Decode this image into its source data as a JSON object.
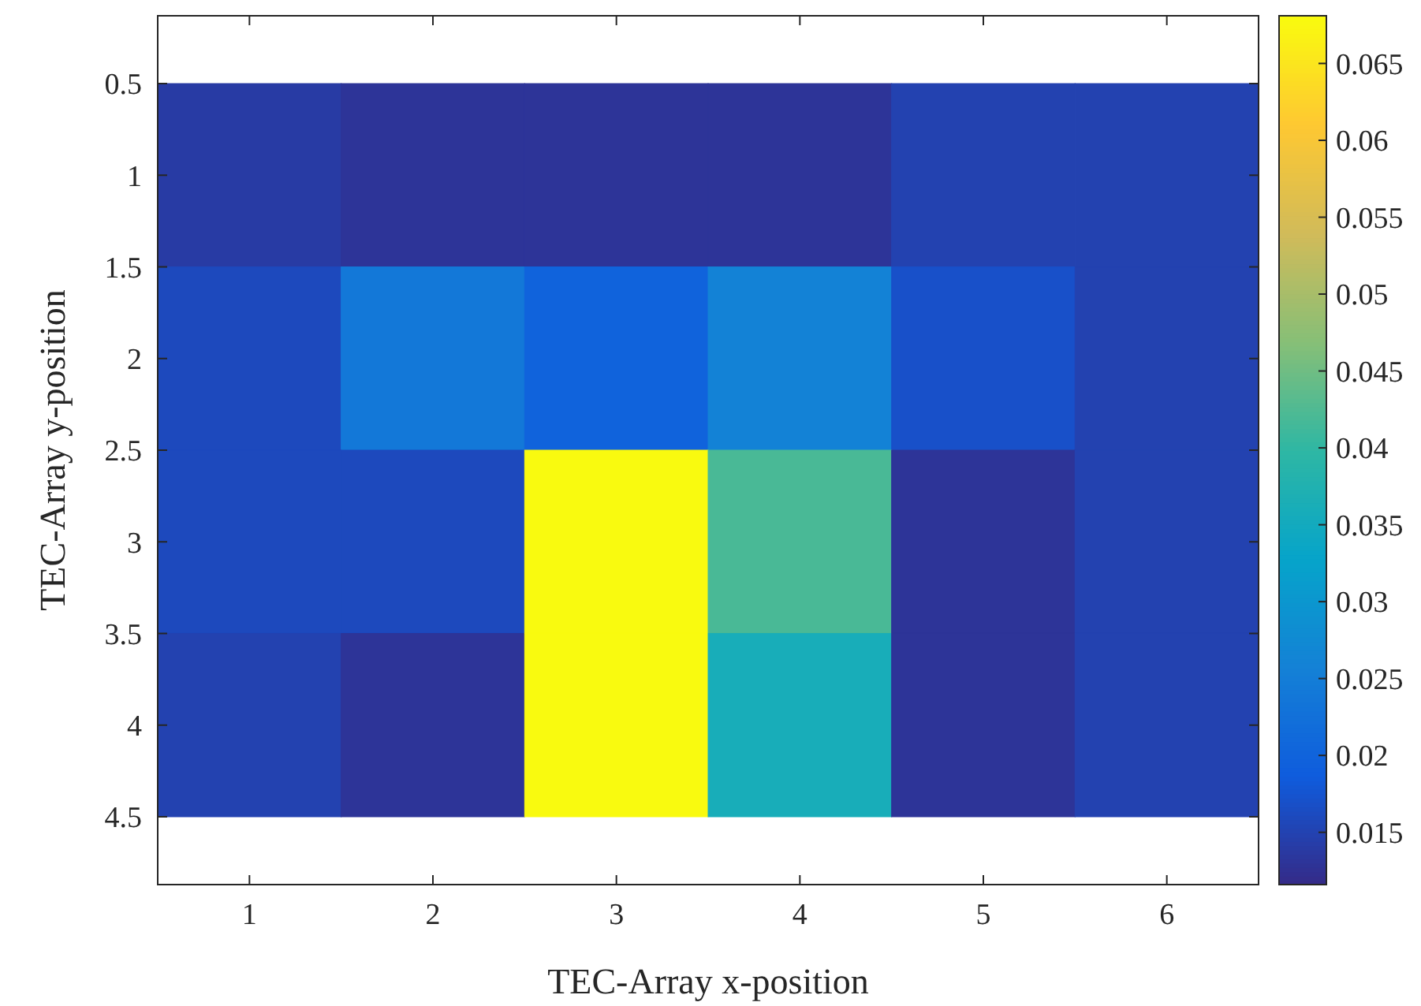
{
  "chart_data": {
    "type": "heatmap",
    "xlabel": "TEC-Array x-position",
    "ylabel": "TEC-Array y-position",
    "categories": [
      "1",
      "2",
      "3",
      "4",
      "5",
      "6"
    ],
    "cells": [
      [
        0.014,
        0.013,
        0.013,
        0.013,
        0.015,
        0.015
      ],
      [
        0.016,
        0.024,
        0.02,
        0.026,
        0.017,
        0.015
      ],
      [
        0.016,
        0.016,
        0.068,
        0.042,
        0.013,
        0.015
      ],
      [
        0.015,
        0.013,
        0.068,
        0.036,
        0.013,
        0.015
      ]
    ],
    "ylim": [
      4.87,
      0.13
    ],
    "yticks": [
      {
        "value": 0.5,
        "label": "0.5"
      },
      1,
      {
        "value": 1.5,
        "label": "1.5"
      },
      2,
      {
        "value": 2.5,
        "label": "2.5"
      },
      3,
      {
        "value": 3.5,
        "label": "3.5"
      },
      4,
      {
        "value": 4.5,
        "label": "4.5"
      }
    ],
    "clim": [
      0.0116,
      0.0681
    ],
    "cticks": [
      0.015,
      0.02,
      0.025,
      0.03,
      0.035,
      0.04,
      0.045,
      0.05,
      0.055,
      0.06,
      0.065
    ]
  }
}
